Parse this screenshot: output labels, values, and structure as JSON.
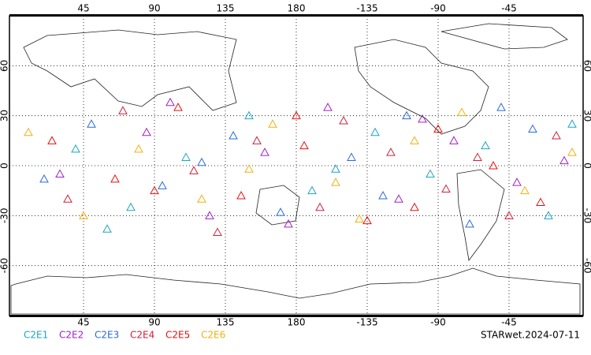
{
  "chart_data": {
    "type": "scatter",
    "note": "STARwet.2024-07-11",
    "xlim": [
      -2,
      362
    ],
    "ylim": [
      -90,
      90
    ],
    "xticks": [
      45,
      90,
      135,
      180,
      {
        "value": 225,
        "label": "-135"
      },
      {
        "value": 270,
        "label": "-90"
      },
      {
        "value": 315,
        "label": "-45"
      }
    ],
    "yticks": [
      60,
      30,
      0,
      -30,
      -60
    ],
    "grid": true,
    "series": [
      {
        "name": "C2E1",
        "color": "#1ca4c4",
        "x": [
          40,
          75,
          110,
          150,
          190,
          230,
          265,
          300,
          340,
          355,
          60,
          205
        ],
        "values": [
          10,
          -25,
          5,
          30,
          -15,
          20,
          -5,
          12,
          -30,
          25,
          -38,
          -2
        ]
      },
      {
        "name": "C2E2",
        "color": "#a020c8",
        "x": [
          30,
          85,
          125,
          160,
          200,
          245,
          280,
          320,
          350,
          100,
          175,
          260
        ],
        "values": [
          -5,
          20,
          -30,
          8,
          35,
          -20,
          15,
          -10,
          3,
          38,
          -35,
          28
        ]
      },
      {
        "name": "C2E3",
        "color": "#2a6ad8",
        "x": [
          50,
          95,
          140,
          170,
          215,
          250,
          290,
          330,
          20,
          120,
          235,
          310
        ],
        "values": [
          25,
          -12,
          18,
          -28,
          5,
          30,
          -35,
          22,
          -8,
          2,
          -18,
          35
        ]
      },
      {
        "name": "C2E4",
        "color": "#d0203c",
        "x": [
          35,
          70,
          115,
          155,
          195,
          240,
          275,
          315,
          345,
          130,
          210,
          295
        ],
        "values": [
          -20,
          33,
          -3,
          15,
          -25,
          8,
          -14,
          -30,
          18,
          -40,
          27,
          5
        ]
      },
      {
        "name": "C2E5",
        "color": "#e81010",
        "x": [
          25,
          65,
          105,
          145,
          185,
          225,
          270,
          305,
          335,
          90,
          180,
          255
        ],
        "values": [
          15,
          -8,
          35,
          -18,
          12,
          -33,
          22,
          0,
          -22,
          -15,
          30,
          -25
        ]
      },
      {
        "name": "C2E6",
        "color": "#f0b010",
        "x": [
          45,
          80,
          120,
          165,
          205,
          255,
          285,
          325,
          355,
          10,
          150,
          220
        ],
        "values": [
          -30,
          10,
          -20,
          25,
          -10,
          15,
          32,
          -15,
          8,
          20,
          -2,
          -32
        ]
      }
    ]
  }
}
